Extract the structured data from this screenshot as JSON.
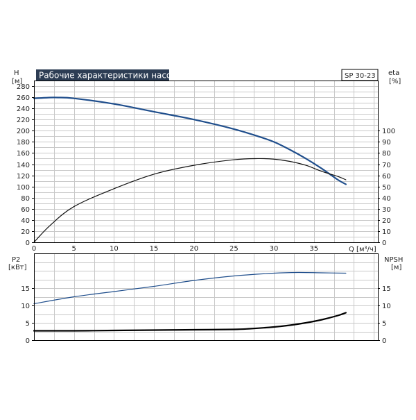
{
  "chart_data": [
    {
      "type": "line",
      "title": "Рабочие характеристики насоса",
      "model_label": "SP 30-23",
      "xlabel": "Q [м³/ч]",
      "xlim": [
        0,
        43
      ],
      "x_ticks": [
        "0",
        "5",
        "10",
        "15",
        "20",
        "25",
        "30",
        "35"
      ],
      "y_left": {
        "label_line1": "H",
        "label_line2": "[м]",
        "ylim": [
          0,
          280
        ],
        "ticks": [
          "0",
          "20",
          "40",
          "60",
          "80",
          "100",
          "120",
          "140",
          "160",
          "180",
          "200",
          "220",
          "240",
          "260",
          "280"
        ]
      },
      "y_right": {
        "label_line1": "eta",
        "label_line2": "[%]",
        "ylim": [
          0,
          140
        ],
        "ticks": [
          "0",
          "10",
          "20",
          "30",
          "40",
          "50",
          "60",
          "70",
          "80",
          "90",
          "100"
        ]
      },
      "grid": true,
      "series": [
        {
          "axis": "left",
          "color": "#1f4e8c",
          "x": [
            0,
            2,
            3,
            5,
            10,
            15,
            20,
            25,
            28,
            30,
            32,
            34,
            36,
            38,
            39
          ],
          "y": [
            258,
            259.5,
            259.5,
            258,
            248,
            234,
            220,
            203,
            190,
            180,
            166,
            150,
            132,
            112,
            104
          ]
        },
        {
          "axis": "right",
          "color": "#111111",
          "x": [
            0,
            2,
            5,
            10,
            15,
            20,
            25,
            28,
            30,
            32,
            34,
            36,
            38,
            39
          ],
          "y": [
            0,
            15,
            32,
            48,
            61,
            69,
            74,
            75,
            74.5,
            72.5,
            69,
            63.5,
            59,
            56
          ]
        }
      ]
    },
    {
      "type": "line",
      "xlim": [
        0,
        43
      ],
      "y_left": {
        "label_line1": "P2",
        "label_line2": "[кВт]",
        "ylim": [
          0,
          25
        ],
        "ticks": [
          "0",
          "5",
          "10",
          "15"
        ]
      },
      "y_right": {
        "label_line1": "NPSH",
        "label_line2": "[м]",
        "ylim": [
          0,
          25
        ],
        "ticks": [
          "0",
          "5",
          "10",
          "15"
        ]
      },
      "grid": true,
      "series": [
        {
          "axis": "left",
          "color": "#1f4e8c",
          "x": [
            0,
            5,
            10,
            15,
            20,
            25,
            30,
            33,
            36,
            39
          ],
          "y": [
            10.5,
            12.5,
            14,
            15.5,
            17.2,
            18.5,
            19.3,
            19.5,
            19.4,
            19.3
          ]
        },
        {
          "axis": "right",
          "color": "#000000",
          "x": [
            0,
            5,
            10,
            15,
            20,
            25,
            27,
            30,
            32,
            34,
            36,
            38,
            39
          ],
          "y": [
            2.7,
            2.7,
            2.8,
            2.9,
            3.0,
            3.1,
            3.3,
            3.8,
            4.3,
            5.0,
            5.9,
            7.1,
            7.9
          ]
        }
      ]
    }
  ]
}
